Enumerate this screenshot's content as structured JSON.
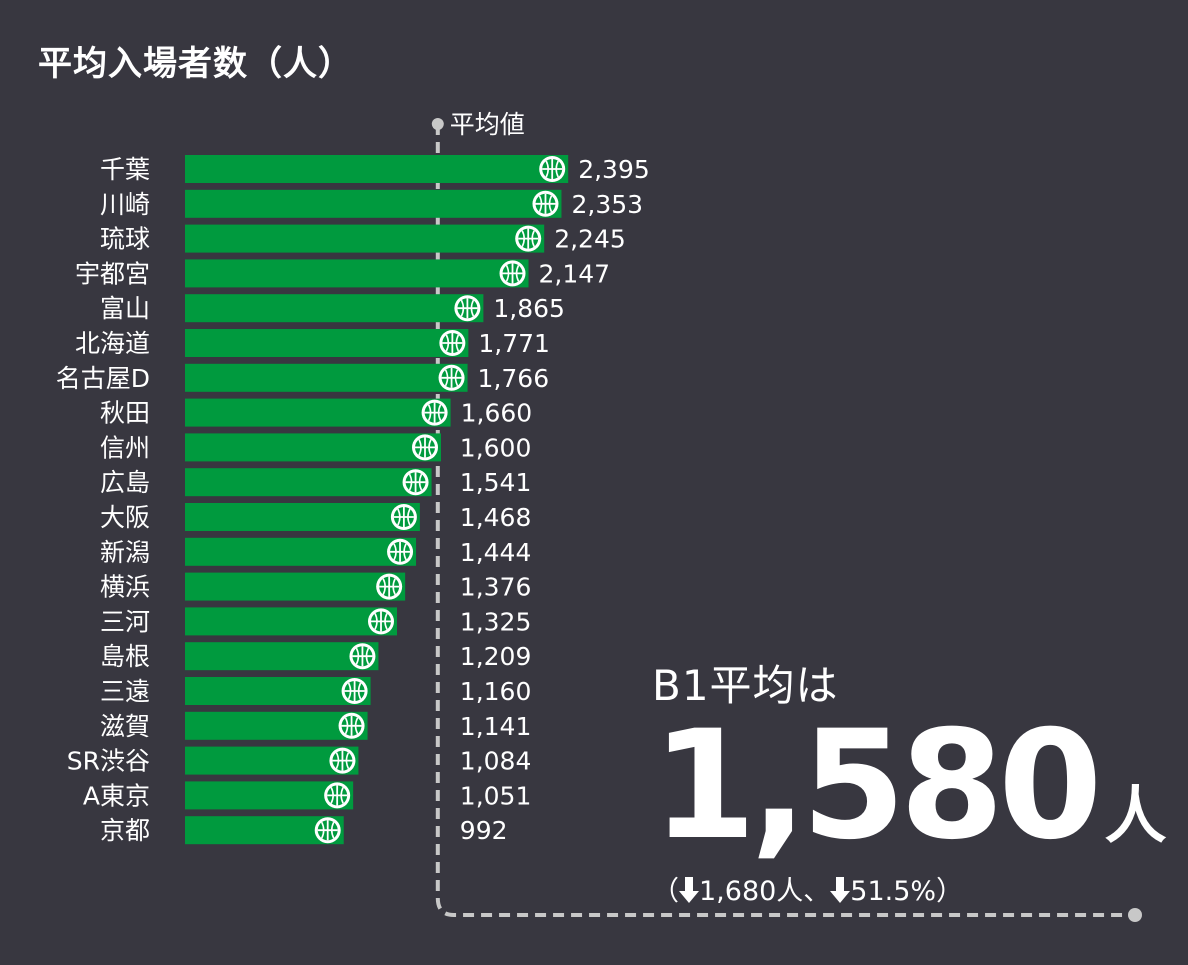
{
  "title": "平均入場者数（人）",
  "chart_data": {
    "type": "bar",
    "orientation": "horizontal",
    "title": "平均入場者数（人）",
    "categories": [
      "千葉",
      "川崎",
      "琉球",
      "宇都宮",
      "富山",
      "北海道",
      "名古屋D",
      "秋田",
      "信州",
      "広島",
      "大阪",
      "新潟",
      "横浜",
      "三河",
      "島根",
      "三遠",
      "滋賀",
      "SR渋谷",
      "A東京",
      "京都"
    ],
    "values": [
      2395,
      2353,
      2245,
      2147,
      1865,
      1771,
      1766,
      1660,
      1600,
      1541,
      1468,
      1444,
      1376,
      1325,
      1209,
      1160,
      1141,
      1084,
      1051,
      992
    ],
    "value_labels": [
      "2,395",
      "2,353",
      "2,245",
      "2,147",
      "1,865",
      "1,771",
      "1,766",
      "1,660",
      "1,600",
      "1,541",
      "1,468",
      "1,444",
      "1,376",
      "1,325",
      "1,209",
      "1,160",
      "1,141",
      "1,084",
      "1,051",
      "992"
    ],
    "average": 1580,
    "average_label": "平均値",
    "colors": {
      "bar": "#009a3e",
      "background": "#383740",
      "text": "#ffffff",
      "average_line": "#c8c8c8"
    },
    "xlim": [
      0,
      2395
    ],
    "grid": false,
    "legend": "none"
  },
  "summary": {
    "heading": "B1平均は",
    "value": "1,580",
    "unit": "人",
    "change_open": "（",
    "prev_value": "1,680人、",
    "change_pct": "51.5%）"
  }
}
